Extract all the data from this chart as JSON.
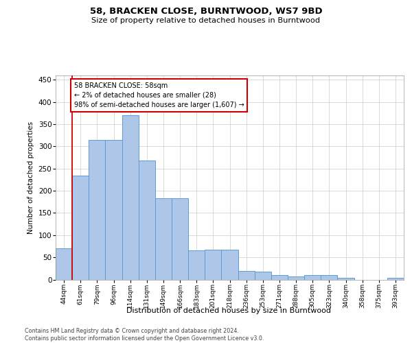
{
  "title": "58, BRACKEN CLOSE, BURNTWOOD, WS7 9BD",
  "subtitle": "Size of property relative to detached houses in Burntwood",
  "xlabel": "Distribution of detached houses by size in Burntwood",
  "ylabel": "Number of detached properties",
  "categories": [
    "44sqm",
    "61sqm",
    "79sqm",
    "96sqm",
    "114sqm",
    "131sqm",
    "149sqm",
    "166sqm",
    "183sqm",
    "201sqm",
    "218sqm",
    "236sqm",
    "253sqm",
    "271sqm",
    "288sqm",
    "305sqm",
    "323sqm",
    "340sqm",
    "358sqm",
    "375sqm",
    "393sqm"
  ],
  "values": [
    70,
    235,
    315,
    315,
    370,
    268,
    183,
    183,
    65,
    68,
    68,
    20,
    18,
    10,
    7,
    10,
    10,
    4,
    0,
    0,
    4
  ],
  "bar_color": "#aec6e8",
  "bar_edge_color": "#5b9bd5",
  "annotation_line1": "58 BRACKEN CLOSE: 58sqm",
  "annotation_line2": "← 2% of detached houses are smaller (28)",
  "annotation_line3": "98% of semi-detached houses are larger (1,607) →",
  "annotation_box_color": "#ffffff",
  "annotation_box_edge_color": "#cc0000",
  "marker_line_color": "#cc0000",
  "ylim": [
    0,
    460
  ],
  "yticks": [
    0,
    50,
    100,
    150,
    200,
    250,
    300,
    350,
    400,
    450
  ],
  "footer_line1": "Contains HM Land Registry data © Crown copyright and database right 2024.",
  "footer_line2": "Contains public sector information licensed under the Open Government Licence v3.0.",
  "bg_color": "#ffffff",
  "grid_color": "#cccccc"
}
